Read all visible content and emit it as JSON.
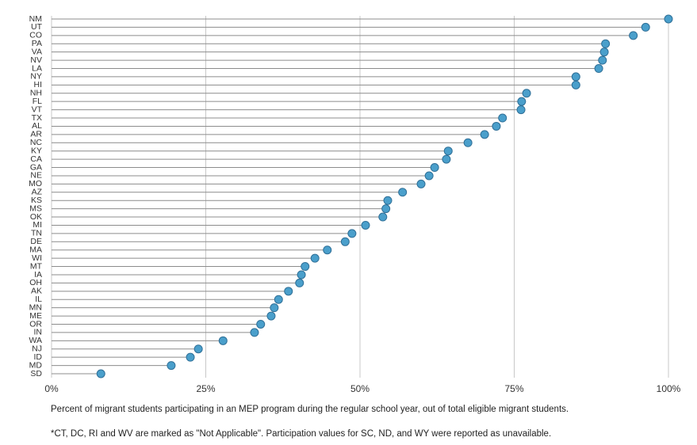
{
  "chart_data": {
    "type": "lollipop",
    "categories": [
      "NM",
      "UT",
      "CO",
      "PA",
      "VA",
      "NV",
      "LA",
      "NY",
      "HI",
      "NH",
      "FL",
      "VT",
      "TX",
      "AL",
      "AR",
      "NC",
      "KY",
      "CA",
      "GA",
      "NE",
      "MO",
      "AZ",
      "KS",
      "MS",
      "OK",
      "MI",
      "TN",
      "DE",
      "MA",
      "WI",
      "MT",
      "IA",
      "OH",
      "AK",
      "IL",
      "MN",
      "ME",
      "OR",
      "IN",
      "WA",
      "NJ",
      "ID",
      "MD",
      "SD"
    ],
    "values": [
      100,
      96.3,
      94.3,
      89.8,
      89.6,
      89.3,
      88.7,
      85.0,
      85.0,
      77.0,
      76.2,
      76.1,
      73.1,
      72.1,
      70.2,
      67.5,
      64.3,
      64.0,
      62.1,
      61.2,
      59.9,
      56.9,
      54.5,
      54.2,
      53.7,
      50.9,
      48.7,
      47.6,
      44.7,
      42.7,
      41.1,
      40.5,
      40.2,
      38.4,
      36.8,
      36.1,
      35.6,
      33.9,
      32.9,
      27.8,
      23.8,
      22.5,
      19.4,
      8.0
    ],
    "color": "#4a9fcb",
    "xlim": [
      0,
      100
    ],
    "xticks": [
      {
        "value": 0,
        "label": "0%"
      },
      {
        "value": 25,
        "label": "25%"
      },
      {
        "value": 50,
        "label": "50%"
      },
      {
        "value": 75,
        "label": "75%"
      },
      {
        "value": 100,
        "label": "100%"
      }
    ],
    "grid": true,
    "notes": [
      "Percent of migrant students participating in an MEP program during the regular school year, out of total eligible migrant students.",
      "*CT, DC, RI and WV are marked as \"Not Applicable\". Participation values for SC, ND, and WY were  reported as unavailable."
    ]
  }
}
